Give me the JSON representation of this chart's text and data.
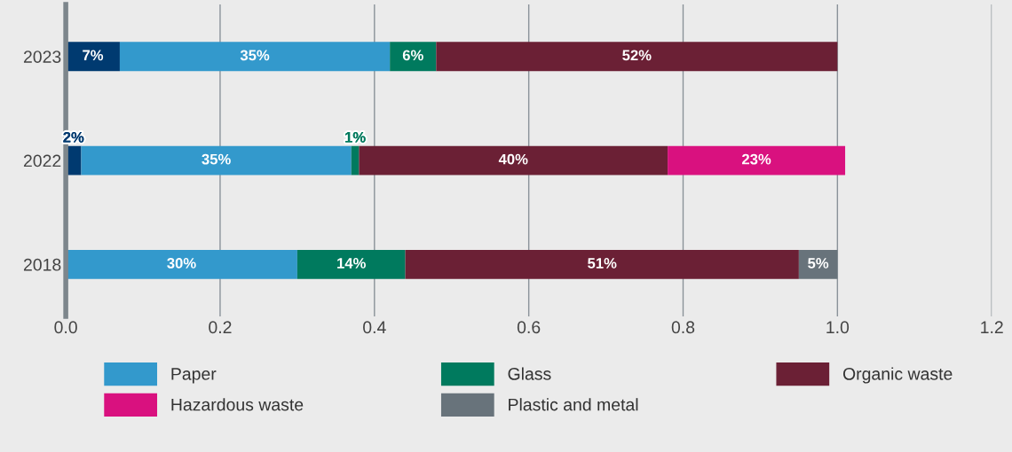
{
  "chart_data": {
    "type": "bar",
    "orientation": "horizontal",
    "stacked": true,
    "categories": [
      "2023",
      "2022",
      "2018"
    ],
    "series": [
      {
        "color": "#003a70",
        "values": [
          0.07,
          0.02,
          null
        ],
        "value_labels": [
          "7%",
          "2%",
          null
        ]
      },
      {
        "name": "Paper",
        "color": "#3399cc",
        "values": [
          0.35,
          0.35,
          0.3
        ],
        "value_labels": [
          "35%",
          "35%",
          "30%"
        ]
      },
      {
        "name": "Glass",
        "color": "#007a5e",
        "values": [
          0.06,
          0.01,
          0.14
        ],
        "value_labels": [
          "6%",
          "1%",
          "14%"
        ]
      },
      {
        "name": "Organic waste",
        "color": "#6b2035",
        "values": [
          0.52,
          0.4,
          0.51
        ],
        "value_labels": [
          "52%",
          "40%",
          "51%"
        ]
      },
      {
        "name": "Hazardous waste",
        "color": "#d9117f",
        "values": [
          null,
          0.23,
          null
        ],
        "value_labels": [
          null,
          "23%",
          null
        ]
      },
      {
        "name": "Plastic and metal",
        "color": "#68737b",
        "values": [
          null,
          null,
          0.05
        ],
        "value_labels": [
          null,
          null,
          "5%"
        ]
      }
    ],
    "xlim": [
      0,
      1.2
    ],
    "xticks": [
      {
        "value": 0,
        "label": "0.0"
      },
      {
        "value": 0.2,
        "label": "0.2"
      },
      {
        "value": 0.4,
        "label": "0.4"
      },
      {
        "value": 0.6,
        "label": "0.6"
      },
      {
        "value": 0.8,
        "label": "0.8"
      },
      {
        "value": 1.0,
        "label": "1.0"
      },
      {
        "value": 1.2,
        "label": "1.2"
      }
    ],
    "grid": "x",
    "legend": "bottom"
  }
}
